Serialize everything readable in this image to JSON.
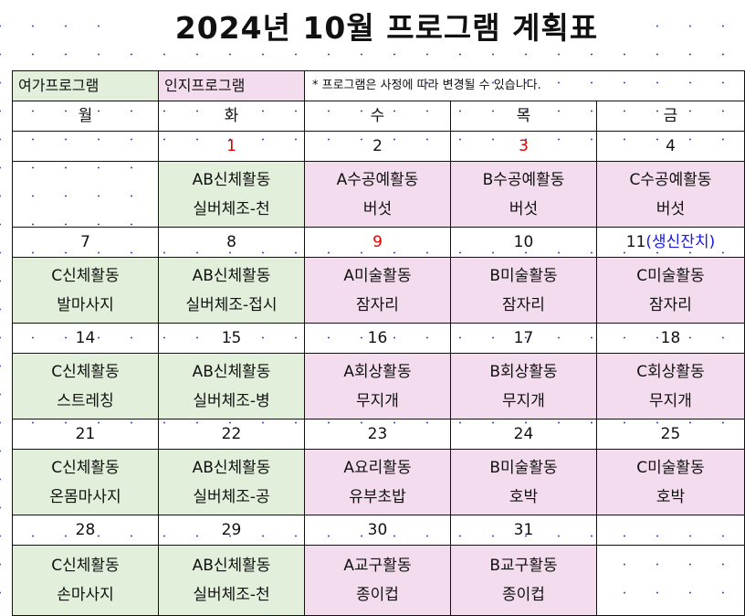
{
  "title": "2024년 10월 프로그램 계획표",
  "legend": {
    "leisure": "여가프로그램",
    "cognitive": "인지프로그램",
    "note": "* 프로그램은 사정에 따라 변경될 수 있습니다."
  },
  "colors": {
    "leisure": "#e2efda",
    "cognitive": "#f3dced",
    "holiday": "#e00000",
    "event": "#1a1ae0"
  },
  "days": [
    "월",
    "화",
    "수",
    "목",
    "금"
  ],
  "weeks": [
    {
      "dates": [
        {
          "d": ""
        },
        {
          "d": "1",
          "holiday": true
        },
        {
          "d": "2"
        },
        {
          "d": "3",
          "holiday": true
        },
        {
          "d": "4"
        }
      ],
      "programs": [
        {
          "t": "",
          "s": "",
          "c": ""
        },
        {
          "t": "AB신체활동",
          "s": "실버체조-천",
          "c": "g"
        },
        {
          "t": "A수공예활동",
          "s": "버섯",
          "c": "p"
        },
        {
          "t": "B수공예활동",
          "s": "버섯",
          "c": "p"
        },
        {
          "t": "C수공예활동",
          "s": "버섯",
          "c": "p"
        }
      ]
    },
    {
      "dates": [
        {
          "d": "7"
        },
        {
          "d": "8"
        },
        {
          "d": "9",
          "holiday": true
        },
        {
          "d": "10"
        },
        {
          "d": "11",
          "event": "(생신잔치)"
        }
      ],
      "programs": [
        {
          "t": "C신체활동",
          "s": "발마사지",
          "c": "g"
        },
        {
          "t": "AB신체활동",
          "s": "실버체조-접시",
          "c": "g"
        },
        {
          "t": "A미술활동",
          "s": "잠자리",
          "c": "p"
        },
        {
          "t": "B미술활동",
          "s": "잠자리",
          "c": "p"
        },
        {
          "t": "C미술활동",
          "s": "잠자리",
          "c": "p"
        }
      ]
    },
    {
      "dates": [
        {
          "d": "14"
        },
        {
          "d": "15"
        },
        {
          "d": "16"
        },
        {
          "d": "17"
        },
        {
          "d": "18"
        }
      ],
      "programs": [
        {
          "t": "C신체활동",
          "s": "스트레칭",
          "c": "g"
        },
        {
          "t": "AB신체활동",
          "s": "실버체조-병",
          "c": "g"
        },
        {
          "t": "A회상활동",
          "s": "무지개",
          "c": "p"
        },
        {
          "t": "B회상활동",
          "s": "무지개",
          "c": "p"
        },
        {
          "t": "C회상활동",
          "s": "무지개",
          "c": "p"
        }
      ]
    },
    {
      "dates": [
        {
          "d": "21"
        },
        {
          "d": "22"
        },
        {
          "d": "23"
        },
        {
          "d": "24"
        },
        {
          "d": "25"
        }
      ],
      "programs": [
        {
          "t": "C신체활동",
          "s": "온몸마사지",
          "c": "g"
        },
        {
          "t": "AB신체활동",
          "s": "실버체조-공",
          "c": "g"
        },
        {
          "t": "A요리활동",
          "s": "유부초밥",
          "c": "p"
        },
        {
          "t": "B미술활동",
          "s": "호박",
          "c": "p"
        },
        {
          "t": "C미술활동",
          "s": "호박",
          "c": "p"
        }
      ]
    },
    {
      "dates": [
        {
          "d": "28"
        },
        {
          "d": "29"
        },
        {
          "d": "30"
        },
        {
          "d": "31"
        },
        {
          "d": ""
        }
      ],
      "programs": [
        {
          "t": "C신체활동",
          "s": "손마사지",
          "c": "g"
        },
        {
          "t": "AB신체활동",
          "s": "실버체조-천",
          "c": "g"
        },
        {
          "t": "A교구활동",
          "s": "종이컵",
          "c": "p"
        },
        {
          "t": "B교구활동",
          "s": "종이컵",
          "c": "p"
        },
        {
          "t": "",
          "s": "",
          "c": ""
        }
      ]
    }
  ]
}
